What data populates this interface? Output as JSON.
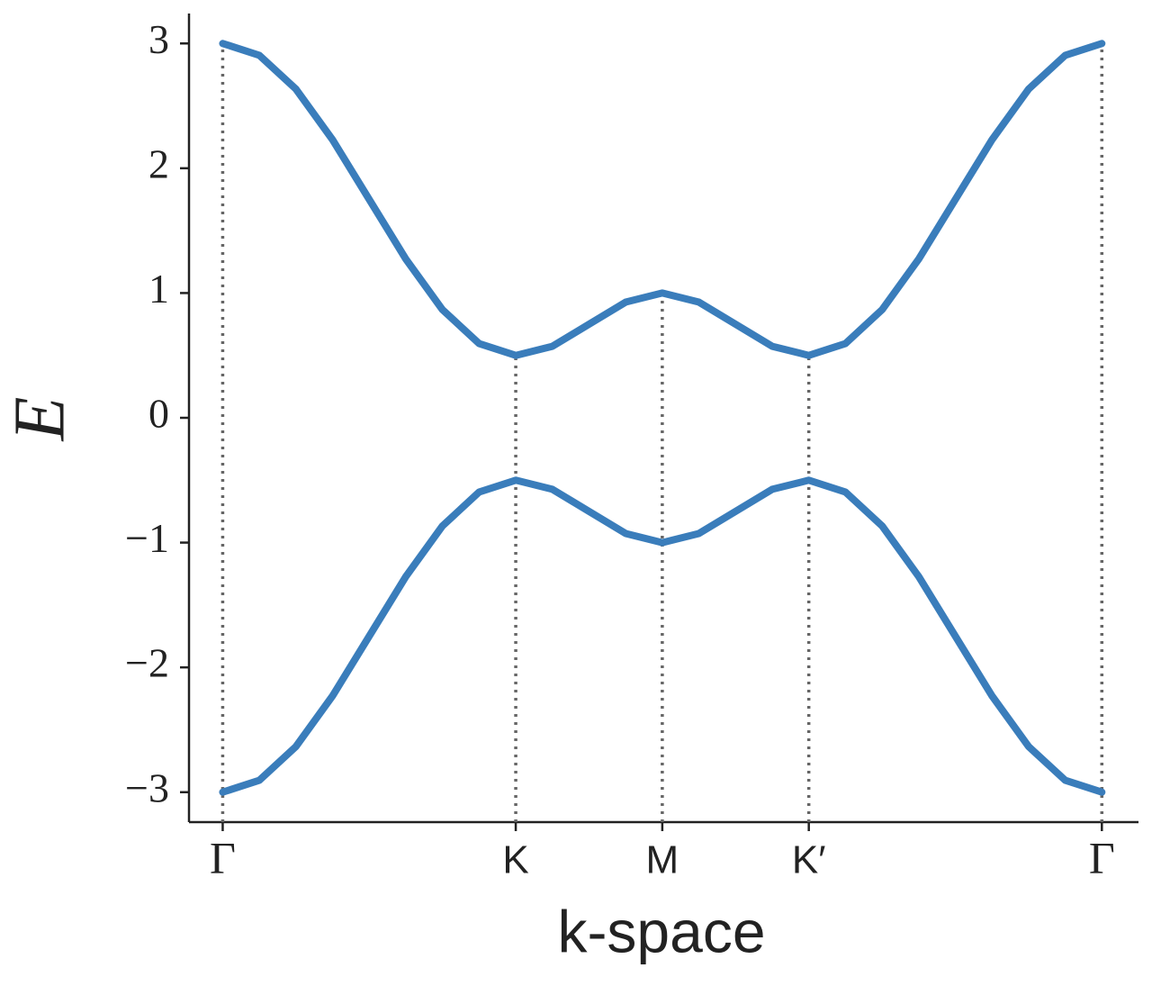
{
  "chart_data": {
    "type": "line",
    "xlabel": "k-space",
    "ylabel": "E",
    "x": [
      0,
      0.25,
      0.5,
      0.75,
      1,
      1.25,
      1.5,
      1.75,
      2,
      2.25,
      2.5,
      2.75,
      3,
      3.25,
      3.5,
      3.75,
      4,
      4.25,
      4.5,
      4.75,
      5,
      5.25,
      5.5,
      5.75,
      6
    ],
    "series": [
      {
        "color": "#3a7dbb",
        "values": [
          3,
          2.905,
          2.634,
          2.228,
          1.75,
          1.272,
          0.866,
          0.595,
          0.5,
          0.573,
          0.75,
          0.927,
          1,
          0.927,
          0.75,
          0.573,
          0.5,
          0.595,
          0.866,
          1.272,
          1.75,
          2.228,
          2.634,
          2.905,
          3
        ]
      },
      {
        "color": "#3a7dbb",
        "values": [
          -3,
          -2.905,
          -2.634,
          -2.228,
          -1.75,
          -1.272,
          -0.866,
          -0.595,
          -0.5,
          -0.573,
          -0.75,
          -0.927,
          -1,
          -0.927,
          -0.75,
          -0.573,
          -0.5,
          -0.595,
          -0.866,
          -1.272,
          -1.75,
          -2.228,
          -2.634,
          -2.905,
          -3
        ]
      }
    ],
    "xlim": [
      -0.23,
      6.25
    ],
    "ylim": [
      -3.24,
      3.24
    ],
    "xticks": [
      {
        "value": 0,
        "label": "Γ"
      },
      {
        "value": 2,
        "label": "K"
      },
      {
        "value": 3,
        "label": "M"
      },
      {
        "value": 4,
        "label": "K′"
      },
      {
        "value": 6,
        "label": "Γ"
      }
    ],
    "yticks": [
      {
        "value": -3,
        "label": "−3"
      },
      {
        "value": -2,
        "label": "−2"
      },
      {
        "value": -1,
        "label": "−1"
      },
      0,
      1,
      2,
      3
    ],
    "vlines": true
  }
}
